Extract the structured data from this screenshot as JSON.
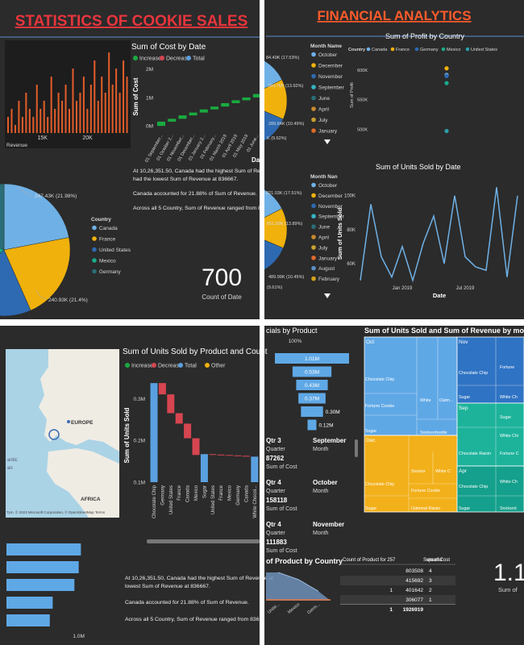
{
  "sales": {
    "title": "STATISTICS OF COOKIE SALES",
    "revenue_histogram": {
      "type": "histogram",
      "xlabel": "Revenue",
      "color": "#e35d2a",
      "xlim": [
        11000,
        24600
      ],
      "xticks": [
        {
          "value": 15000,
          "label": "15K"
        },
        {
          "value": 20000,
          "label": "20K"
        }
      ],
      "bins": [
        11000,
        11400,
        11800,
        12200,
        12600,
        13000,
        13400,
        13800,
        14200,
        14600,
        15000,
        15400,
        15800,
        16200,
        16600,
        17000,
        17400,
        17800,
        18200,
        18600,
        19000,
        19400,
        19800,
        20200,
        20600,
        21000,
        21400,
        21800,
        22200,
        22600,
        23000,
        23400,
        23800,
        24200,
        24600
      ],
      "counts": [
        2,
        3,
        1,
        4,
        2,
        5,
        3,
        2,
        6,
        3,
        4,
        2,
        7,
        3,
        5,
        4,
        6,
        3,
        8,
        4,
        5,
        7,
        3,
        6,
        9,
        4,
        7,
        5,
        10,
        6,
        8,
        5,
        9,
        7
      ]
    },
    "cost_waterfall": {
      "type": "waterfall",
      "title": "Sum of Cost by Date",
      "xlabel": "Dat",
      "ylabel": "Sum of Cost",
      "legend": [
        {
          "name": "Increase",
          "color": "#1aab40"
        },
        {
          "name": "Decrease",
          "color": "#d64550"
        },
        {
          "name": "Total",
          "color": "#5aa0e0"
        }
      ],
      "categories": [
        "01 September...",
        "01 October 2...",
        "01 November...",
        "01 December...",
        "01 January 2...",
        "01 February...",
        "01 March 2019",
        "01 April 2019",
        "01 May 2019",
        "01 June..."
      ],
      "values": [
        0.15,
        0.1,
        0.12,
        0.1,
        0.11,
        0.1,
        0.12,
        0.1,
        0.1,
        0.12
      ],
      "ylim": [
        -0.25,
        2.3
      ],
      "yticks": [
        {
          "value": 0,
          "label": "0M"
        },
        {
          "value": 1,
          "label": "1M"
        },
        {
          "value": 2,
          "label": "2M"
        }
      ]
    },
    "country_pie": {
      "type": "pie",
      "legend_title": "Country",
      "categories": [
        "Canada",
        "France",
        "United States",
        "Mexico",
        "Germany"
      ],
      "colors": [
        "#6fb1e6",
        "#f0b10c",
        "#2e6ab2",
        "#1aab8a",
        "#2a6e78"
      ],
      "values": [
        21.98,
        21.4,
        20.5,
        18.5,
        17.62
      ],
      "value_labels": [
        "247.43K (21.98%)",
        "240.93K (21.4%)",
        null,
        null,
        null
      ]
    },
    "insights": [
      "At 10,26,351.50, Canada had the highest Sum of Revenue",
      "had the lowest Sum of Revenue at 836667.",
      "Canada accounted for 21.88% of Sum of Revenue.",
      "Across all 5 Country, Sum of Revenue ranged from 83666"
    ],
    "card": {
      "value": "700",
      "label": "Count of Date"
    }
  },
  "finance": {
    "title": "FINANCIAL ANALYTICS",
    "profit_pie": {
      "type": "pie",
      "legend_title": "Month Name",
      "categories": [
        "October",
        "December",
        "November",
        "September",
        "June",
        "April",
        "July",
        "January"
      ],
      "colors": [
        "#6fb1e6",
        "#f0b10c",
        "#2e6ab2",
        "#34b6c4",
        "#2a6e78",
        "#c98a2e",
        "#c9a12e",
        "#e06a2a"
      ],
      "values": [
        17.53,
        13.92,
        10.49,
        9.62,
        8.5,
        8.0,
        7.5,
        7.0
      ],
      "value_labels": [
        "84.49K (17.53%)",
        "384.76K (13.92%)",
        "289.84K (10.49%)",
        "K (9.62%)",
        null,
        null,
        null,
        null
      ]
    },
    "profit_scatter": {
      "type": "scatter",
      "title": "Sum of Profit by Country",
      "ylabel": "Sum of Profit",
      "legend_title": "Country",
      "series": [
        {
          "name": "Canada",
          "color": "#6fb1e6",
          "values": [
            592000
          ]
        },
        {
          "name": "France",
          "color": "#f0b10c",
          "values": [
            603000
          ]
        },
        {
          "name": "Germany",
          "color": "#2e6ab2",
          "values": [
            590000
          ]
        },
        {
          "name": "Mexico",
          "color": "#1aab8a",
          "values": [
            578000
          ]
        },
        {
          "name": "United States",
          "color": "#2a9ea8",
          "values": [
            497000
          ]
        }
      ],
      "ylim": [
        480000,
        634000
      ],
      "yticks": [
        {
          "value": 600000,
          "label": "600K"
        },
        {
          "value": 550000,
          "label": "550K"
        },
        {
          "value": 500000,
          "label": "500K"
        }
      ]
    },
    "units_pie": {
      "type": "pie",
      "legend_title": "Month Nan",
      "categories": [
        "October",
        "December",
        "November",
        "September",
        "June",
        "April",
        "July",
        "January",
        "August",
        "February"
      ],
      "colors": [
        "#6fb1e6",
        "#f0b10c",
        "#2e6ab2",
        "#34b6c4",
        "#2a6e78",
        "#c98a2e",
        "#c9a12e",
        "#e06a2a",
        "#5b8fc9",
        "#d4a21a"
      ],
      "values": [
        17.51,
        13.89,
        10.45,
        9.61,
        8.4,
        8.0,
        7.6,
        7.1,
        6.5,
        6.0
      ],
      "value_labels": [
        "821.03K (17.51%)",
        "651.58K (13.89%)",
        "489.99K (10.45%)",
        "(9.61%)",
        null,
        null,
        null,
        null,
        null,
        null
      ]
    },
    "units_line": {
      "type": "line",
      "title": "Sum of Units Sold by Date",
      "xlabel": "Date",
      "ylabel": "Sum of Units Sold",
      "color": "#6fb1e6",
      "x": [
        "Sep 2018",
        "Oct 2018",
        "Nov 2018",
        "Dec 2018",
        "Jan 2019",
        "Feb 2019",
        "Mar 2019",
        "Apr 2019",
        "May 2019",
        "Jun 2019",
        "Jul 2019",
        "Aug 2019",
        "Sep 2019",
        "Oct 2019",
        "Nov 2019",
        "Dec 2019"
      ],
      "values": [
        50000,
        95000,
        64000,
        52000,
        70000,
        50000,
        72000,
        88000,
        60000,
        100000,
        64000,
        58000,
        56000,
        105000,
        52000,
        100000
      ],
      "xticks": [
        "Jan 2019",
        "Jul 2019"
      ],
      "ylim": [
        49000,
        107000
      ],
      "yticks": [
        {
          "value": 100000,
          "label": "100K"
        },
        {
          "value": 80000,
          "label": "80K"
        },
        {
          "value": 60000,
          "label": "60K"
        }
      ]
    }
  },
  "products": {
    "map": {
      "labels": [
        "EUROPE",
        "AFRICA",
        "antic",
        "an"
      ],
      "attribution": "Tym. © 2023 Microsoft Corporation, © OpenStreetMap  Terms"
    },
    "units_waterfall": {
      "type": "waterfall",
      "title": "Sum of Units Sold by Product and Count",
      "ylabel": "Sum of Units Sold",
      "legend": [
        {
          "name": "Increase",
          "color": "#1aab40"
        },
        {
          "name": "Decrease",
          "color": "#d64550"
        },
        {
          "name": "Total",
          "color": "#5aa0e0"
        },
        {
          "name": "Other",
          "color": "#f0b10c"
        }
      ],
      "categories": [
        "Chocolate Chip",
        "Germany",
        "United States",
        "France",
        "Canada",
        "Mexico",
        "Sugar",
        "United States",
        "France",
        "Mexico",
        "Germany",
        "Canada",
        "White Chocol..."
      ],
      "kinds": [
        "Total",
        "Decrease",
        "Decrease",
        "Decrease",
        "Decrease",
        "Decrease",
        "Total",
        "Decrease",
        "Decrease",
        "Decrease",
        "Decrease",
        "Decrease",
        "Total"
      ],
      "values": [
        0.337,
        -0.027,
        -0.045,
        -0.025,
        -0.035,
        -0.04,
        0.167,
        -0.001,
        -0.001,
        -0.001,
        -0.001,
        -0.002,
        0.161
      ],
      "ylim": [
        0.1,
        0.345
      ],
      "yticks": [
        {
          "value": 0.3,
          "label": "0.3M"
        },
        {
          "value": 0.2,
          "label": "0.2M"
        },
        {
          "value": 0.1,
          "label": "0.1M"
        }
      ]
    },
    "hbars": {
      "type": "bar",
      "color": "#5fa8e6",
      "values": [
        1.03,
        1.0,
        0.94,
        0.64,
        0.6
      ],
      "xlim": [
        0,
        1.16
      ],
      "xticks": [
        {
          "value": 1.0,
          "label": "1.0M"
        }
      ]
    },
    "insights": [
      "At 10,26,351.50, Canada had the highest Sum of Revenue at",
      "lowest Sum of Revenue at 836667.",
      "Canada accounted for 21.88% of Sum of Revenue.",
      "Across all 5 Country, Sum of Revenue ranged from 836"
    ]
  },
  "quarters": {
    "funnel": {
      "type": "funnel",
      "title": "cials by Product",
      "top_label": "100%",
      "color": "#5fa8e6",
      "values": [
        1.01,
        0.53,
        0.43,
        0.37,
        0.3,
        0.12
      ],
      "value_labels": [
        "1.01M",
        "0.53M",
        "0.43M",
        "0.37M",
        "0.30M",
        "0.12M"
      ]
    },
    "cards": [
      {
        "quarter": "Qtr 3",
        "quarter_label": "Quarter",
        "month": "September",
        "month_label": "Month",
        "value": "87262",
        "value_label": "Sum of Cost"
      },
      {
        "quarter": "Qtr 4",
        "quarter_label": "Quarter",
        "month": "October",
        "month_label": "Month",
        "value": "158118",
        "value_label": "Sum of Cost"
      },
      {
        "quarter": "Qtr 4",
        "quarter_label": "Quarter",
        "month": "November",
        "month_label": "Month",
        "value": "111883",
        "value_label": "Sum of Cost"
      }
    ],
    "treemap": {
      "title": "Sum of Units Sold and Sum of Revenue by month an",
      "groups": [
        {
          "label": "Oct",
          "items": [
            "Chocolate Chip",
            "Fortune Cookie",
            "Sugar",
            "White",
            "Oatm...",
            "Snickerdoodle"
          ]
        },
        {
          "label": "Nov",
          "items": [
            "Chocolate Chip",
            "Fortune",
            "Sugar",
            "White Ch"
          ]
        },
        {
          "label": "Sep",
          "items": [
            "Sugar",
            "White Chi",
            "Chocolate Raisin",
            "Fortune C"
          ]
        },
        {
          "label": "Dec",
          "items": [
            "Snicker",
            "White C",
            "Chocolate Chip",
            "Fortune Cookie",
            "Sugar",
            "Oatmeal Raisin"
          ]
        },
        {
          "label": "Apr",
          "items": [
            "Chocolate Chip",
            "White Ch",
            "Sugar",
            "Snickerd"
          ]
        }
      ]
    },
    "area": {
      "type": "area",
      "title": "of Product by Country",
      "categories": [
        "Unite...",
        "Mexico",
        "Germ..."
      ],
      "values": [
        60,
        45,
        20
      ],
      "color": "#6d8fb8"
    },
    "table": {
      "headers": [
        "Count of Product for 257",
        "Sum of Cost",
        "quarter"
      ],
      "rows": [
        [
          null,
          "803508",
          "4"
        ],
        [
          null,
          "415692",
          "3"
        ],
        [
          "1",
          "401642",
          "2"
        ],
        [
          null,
          "306077",
          "1"
        ],
        [
          "1",
          "1926919",
          null
        ]
      ]
    },
    "card": {
      "value": "1.1",
      "label": "Sum of"
    }
  }
}
